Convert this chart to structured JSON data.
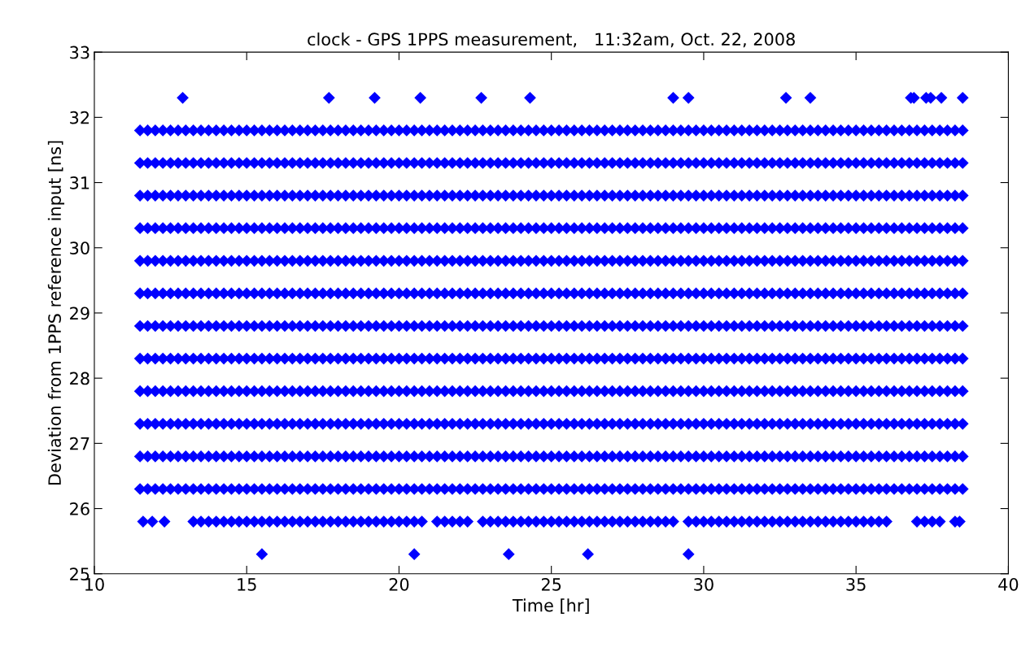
{
  "chart_data": {
    "type": "scatter",
    "title": "clock - GPS 1PPS measurement,   11:32am, Oct. 22, 2008",
    "xlabel": "Time [hr]",
    "ylabel": "Deviation from 1PPS reference input [ns]",
    "x": [
      11.5,
      11.75,
      12,
      12.25,
      12.5,
      12.75,
      13,
      13.25,
      13.5,
      13.75,
      14,
      14.25,
      14.5,
      14.75,
      15,
      15.25,
      15.5,
      15.75,
      16,
      16.25,
      16.5,
      16.75,
      17,
      17.25,
      17.5,
      17.75,
      18,
      18.25,
      18.5,
      18.75,
      19,
      19.25,
      19.5,
      19.75,
      20,
      20.25,
      20.5,
      20.75,
      21,
      21.25,
      21.5,
      21.75,
      22,
      22.25,
      22.5,
      22.75,
      23,
      23.25,
      23.5,
      23.75,
      24,
      24.25,
      24.5,
      24.75,
      25,
      25.25,
      25.5,
      25.75,
      26,
      26.25,
      26.5,
      26.75,
      27,
      27.25,
      27.5,
      27.75,
      28,
      28.25,
      28.5,
      28.75,
      29,
      29.25,
      29.5,
      29.75,
      30,
      30.25,
      30.5,
      30.75,
      31,
      31.25,
      31.5,
      31.75,
      32,
      32.25,
      32.5,
      32.75,
      33,
      33.25,
      33.5,
      33.75,
      34,
      34.25,
      34.5,
      34.75,
      35,
      35.25,
      35.5,
      35.75,
      36,
      36.25,
      36.5,
      36.75,
      37,
      37.25,
      37.5,
      37.75,
      38,
      38.25,
      38.5
    ],
    "series": [
      {
        "color": "#0000ff",
        "x": [
          15.5,
          20.5,
          23.6,
          26.2,
          29.5
        ],
        "values": [
          25.3,
          25.3,
          25.3,
          25.3,
          25.3
        ]
      },
      {
        "color": "#0000ff",
        "x": [
          11.6,
          11.9,
          12.3,
          13.25,
          13.5,
          13.75,
          14,
          14.25,
          14.5,
          14.75,
          15,
          15.25,
          15.5,
          15.75,
          16,
          16.25,
          16.5,
          16.75,
          17,
          17.25,
          17.5,
          17.75,
          18,
          18.25,
          18.5,
          18.75,
          19,
          19.25,
          19.5,
          19.75,
          20,
          20.25,
          20.5,
          20.75,
          21.25,
          21.5,
          21.75,
          22,
          22.25,
          22.75,
          23,
          23.25,
          23.5,
          23.75,
          24,
          24.25,
          24.5,
          24.75,
          25,
          25.25,
          25.5,
          25.75,
          26,
          26.25,
          26.5,
          26.75,
          27,
          27.25,
          27.5,
          27.75,
          28,
          28.25,
          28.5,
          28.75,
          29,
          29.5,
          29.75,
          30,
          30.25,
          30.5,
          30.75,
          31,
          31.25,
          31.5,
          31.75,
          32,
          32.25,
          32.5,
          32.75,
          33,
          33.25,
          33.5,
          33.75,
          34,
          34.25,
          34.5,
          34.75,
          35,
          35.25,
          35.5,
          35.75,
          36,
          37,
          37.25,
          37.5,
          37.75,
          38.25,
          38.4
        ],
        "values": [
          25.8,
          25.8,
          25.8,
          25.8,
          25.8,
          25.8,
          25.8,
          25.8,
          25.8,
          25.8,
          25.8,
          25.8,
          25.8,
          25.8,
          25.8,
          25.8,
          25.8,
          25.8,
          25.8,
          25.8,
          25.8,
          25.8,
          25.8,
          25.8,
          25.8,
          25.8,
          25.8,
          25.8,
          25.8,
          25.8,
          25.8,
          25.8,
          25.8,
          25.8,
          25.8,
          25.8,
          25.8,
          25.8,
          25.8,
          25.8,
          25.8,
          25.8,
          25.8,
          25.8,
          25.8,
          25.8,
          25.8,
          25.8,
          25.8,
          25.8,
          25.8,
          25.8,
          25.8,
          25.8,
          25.8,
          25.8,
          25.8,
          25.8,
          25.8,
          25.8,
          25.8,
          25.8,
          25.8,
          25.8,
          25.8,
          25.8,
          25.8,
          25.8,
          25.8,
          25.8,
          25.8,
          25.8,
          25.8,
          25.8,
          25.8,
          25.8,
          25.8,
          25.8,
          25.8,
          25.8,
          25.8,
          25.8,
          25.8,
          25.8,
          25.8,
          25.8,
          25.8,
          25.8,
          25.8,
          25.8,
          25.8,
          25.8,
          25.8,
          25.8,
          25.8,
          25.8,
          25.8,
          25.8
        ]
      },
      {
        "color": "#0000ff",
        "values": [
          26.3,
          26.3,
          26.3,
          26.3,
          26.3,
          26.3,
          26.3,
          26.3,
          26.3,
          26.3,
          26.3,
          26.3,
          26.3,
          26.3,
          26.3,
          26.3,
          26.3,
          26.3,
          26.3,
          26.3,
          26.3,
          26.3,
          26.3,
          26.3,
          26.3,
          26.3,
          26.3,
          26.3,
          26.3,
          26.3,
          26.3,
          26.3,
          26.3,
          26.3,
          26.3,
          26.3,
          26.3,
          26.3,
          26.3,
          26.3,
          26.3,
          26.3,
          26.3,
          26.3,
          26.3,
          26.3,
          26.3,
          26.3,
          26.3,
          26.3,
          26.3,
          26.3,
          26.3,
          26.3,
          26.3,
          26.3,
          26.3,
          26.3,
          26.3,
          26.3,
          26.3,
          26.3,
          26.3,
          26.3,
          26.3,
          26.3,
          26.3,
          26.3,
          26.3,
          26.3,
          26.3,
          26.3,
          26.3,
          26.3,
          26.3,
          26.3,
          26.3,
          26.3,
          26.3,
          26.3,
          26.3,
          26.3,
          26.3,
          26.3,
          26.3,
          26.3,
          26.3,
          26.3,
          26.3,
          26.3,
          26.3,
          26.3,
          26.3,
          26.3,
          26.3,
          26.3,
          26.3,
          26.3,
          26.3,
          26.3,
          26.3,
          26.3,
          26.3,
          26.3,
          26.3,
          26.3,
          26.3,
          26.3,
          26.3
        ]
      },
      {
        "color": "#0000ff",
        "values": [
          26.8,
          26.8,
          26.8,
          26.8,
          26.8,
          26.8,
          26.8,
          26.8,
          26.8,
          26.8,
          26.8,
          26.8,
          26.8,
          26.8,
          26.8,
          26.8,
          26.8,
          26.8,
          26.8,
          26.8,
          26.8,
          26.8,
          26.8,
          26.8,
          26.8,
          26.8,
          26.8,
          26.8,
          26.8,
          26.8,
          26.8,
          26.8,
          26.8,
          26.8,
          26.8,
          26.8,
          26.8,
          26.8,
          26.8,
          26.8,
          26.8,
          26.8,
          26.8,
          26.8,
          26.8,
          26.8,
          26.8,
          26.8,
          26.8,
          26.8,
          26.8,
          26.8,
          26.8,
          26.8,
          26.8,
          26.8,
          26.8,
          26.8,
          26.8,
          26.8,
          26.8,
          26.8,
          26.8,
          26.8,
          26.8,
          26.8,
          26.8,
          26.8,
          26.8,
          26.8,
          26.8,
          26.8,
          26.8,
          26.8,
          26.8,
          26.8,
          26.8,
          26.8,
          26.8,
          26.8,
          26.8,
          26.8,
          26.8,
          26.8,
          26.8,
          26.8,
          26.8,
          26.8,
          26.8,
          26.8,
          26.8,
          26.8,
          26.8,
          26.8,
          26.8,
          26.8,
          26.8,
          26.8,
          26.8,
          26.8,
          26.8,
          26.8,
          26.8,
          26.8,
          26.8,
          26.8,
          26.8,
          26.8,
          26.8
        ]
      },
      {
        "color": "#0000ff",
        "values": [
          27.3,
          27.3,
          27.3,
          27.3,
          27.3,
          27.3,
          27.3,
          27.3,
          27.3,
          27.3,
          27.3,
          27.3,
          27.3,
          27.3,
          27.3,
          27.3,
          27.3,
          27.3,
          27.3,
          27.3,
          27.3,
          27.3,
          27.3,
          27.3,
          27.3,
          27.3,
          27.3,
          27.3,
          27.3,
          27.3,
          27.3,
          27.3,
          27.3,
          27.3,
          27.3,
          27.3,
          27.3,
          27.3,
          27.3,
          27.3,
          27.3,
          27.3,
          27.3,
          27.3,
          27.3,
          27.3,
          27.3,
          27.3,
          27.3,
          27.3,
          27.3,
          27.3,
          27.3,
          27.3,
          27.3,
          27.3,
          27.3,
          27.3,
          27.3,
          27.3,
          27.3,
          27.3,
          27.3,
          27.3,
          27.3,
          27.3,
          27.3,
          27.3,
          27.3,
          27.3,
          27.3,
          27.3,
          27.3,
          27.3,
          27.3,
          27.3,
          27.3,
          27.3,
          27.3,
          27.3,
          27.3,
          27.3,
          27.3,
          27.3,
          27.3,
          27.3,
          27.3,
          27.3,
          27.3,
          27.3,
          27.3,
          27.3,
          27.3,
          27.3,
          27.3,
          27.3,
          27.3,
          27.3,
          27.3,
          27.3,
          27.3,
          27.3,
          27.3,
          27.3,
          27.3,
          27.3,
          27.3,
          27.3,
          27.3
        ]
      },
      {
        "color": "#0000ff",
        "values": [
          27.8,
          27.8,
          27.8,
          27.8,
          27.8,
          27.8,
          27.8,
          27.8,
          27.8,
          27.8,
          27.8,
          27.8,
          27.8,
          27.8,
          27.8,
          27.8,
          27.8,
          27.8,
          27.8,
          27.8,
          27.8,
          27.8,
          27.8,
          27.8,
          27.8,
          27.8,
          27.8,
          27.8,
          27.8,
          27.8,
          27.8,
          27.8,
          27.8,
          27.8,
          27.8,
          27.8,
          27.8,
          27.8,
          27.8,
          27.8,
          27.8,
          27.8,
          27.8,
          27.8,
          27.8,
          27.8,
          27.8,
          27.8,
          27.8,
          27.8,
          27.8,
          27.8,
          27.8,
          27.8,
          27.8,
          27.8,
          27.8,
          27.8,
          27.8,
          27.8,
          27.8,
          27.8,
          27.8,
          27.8,
          27.8,
          27.8,
          27.8,
          27.8,
          27.8,
          27.8,
          27.8,
          27.8,
          27.8,
          27.8,
          27.8,
          27.8,
          27.8,
          27.8,
          27.8,
          27.8,
          27.8,
          27.8,
          27.8,
          27.8,
          27.8,
          27.8,
          27.8,
          27.8,
          27.8,
          27.8,
          27.8,
          27.8,
          27.8,
          27.8,
          27.8,
          27.8,
          27.8,
          27.8,
          27.8,
          27.8,
          27.8,
          27.8,
          27.8,
          27.8,
          27.8,
          27.8,
          27.8,
          27.8,
          27.8
        ]
      },
      {
        "color": "#0000ff",
        "values": [
          28.3,
          28.3,
          28.3,
          28.3,
          28.3,
          28.3,
          28.3,
          28.3,
          28.3,
          28.3,
          28.3,
          28.3,
          28.3,
          28.3,
          28.3,
          28.3,
          28.3,
          28.3,
          28.3,
          28.3,
          28.3,
          28.3,
          28.3,
          28.3,
          28.3,
          28.3,
          28.3,
          28.3,
          28.3,
          28.3,
          28.3,
          28.3,
          28.3,
          28.3,
          28.3,
          28.3,
          28.3,
          28.3,
          28.3,
          28.3,
          28.3,
          28.3,
          28.3,
          28.3,
          28.3,
          28.3,
          28.3,
          28.3,
          28.3,
          28.3,
          28.3,
          28.3,
          28.3,
          28.3,
          28.3,
          28.3,
          28.3,
          28.3,
          28.3,
          28.3,
          28.3,
          28.3,
          28.3,
          28.3,
          28.3,
          28.3,
          28.3,
          28.3,
          28.3,
          28.3,
          28.3,
          28.3,
          28.3,
          28.3,
          28.3,
          28.3,
          28.3,
          28.3,
          28.3,
          28.3,
          28.3,
          28.3,
          28.3,
          28.3,
          28.3,
          28.3,
          28.3,
          28.3,
          28.3,
          28.3,
          28.3,
          28.3,
          28.3,
          28.3,
          28.3,
          28.3,
          28.3,
          28.3,
          28.3,
          28.3,
          28.3,
          28.3,
          28.3,
          28.3,
          28.3,
          28.3,
          28.3,
          28.3,
          28.3
        ]
      },
      {
        "color": "#0000ff",
        "values": [
          28.8,
          28.8,
          28.8,
          28.8,
          28.8,
          28.8,
          28.8,
          28.8,
          28.8,
          28.8,
          28.8,
          28.8,
          28.8,
          28.8,
          28.8,
          28.8,
          28.8,
          28.8,
          28.8,
          28.8,
          28.8,
          28.8,
          28.8,
          28.8,
          28.8,
          28.8,
          28.8,
          28.8,
          28.8,
          28.8,
          28.8,
          28.8,
          28.8,
          28.8,
          28.8,
          28.8,
          28.8,
          28.8,
          28.8,
          28.8,
          28.8,
          28.8,
          28.8,
          28.8,
          28.8,
          28.8,
          28.8,
          28.8,
          28.8,
          28.8,
          28.8,
          28.8,
          28.8,
          28.8,
          28.8,
          28.8,
          28.8,
          28.8,
          28.8,
          28.8,
          28.8,
          28.8,
          28.8,
          28.8,
          28.8,
          28.8,
          28.8,
          28.8,
          28.8,
          28.8,
          28.8,
          28.8,
          28.8,
          28.8,
          28.8,
          28.8,
          28.8,
          28.8,
          28.8,
          28.8,
          28.8,
          28.8,
          28.8,
          28.8,
          28.8,
          28.8,
          28.8,
          28.8,
          28.8,
          28.8,
          28.8,
          28.8,
          28.8,
          28.8,
          28.8,
          28.8,
          28.8,
          28.8,
          28.8,
          28.8,
          28.8,
          28.8,
          28.8,
          28.8,
          28.8,
          28.8,
          28.8,
          28.8,
          28.8
        ]
      },
      {
        "color": "#0000ff",
        "values": [
          29.3,
          29.3,
          29.3,
          29.3,
          29.3,
          29.3,
          29.3,
          29.3,
          29.3,
          29.3,
          29.3,
          29.3,
          29.3,
          29.3,
          29.3,
          29.3,
          29.3,
          29.3,
          29.3,
          29.3,
          29.3,
          29.3,
          29.3,
          29.3,
          29.3,
          29.3,
          29.3,
          29.3,
          29.3,
          29.3,
          29.3,
          29.3,
          29.3,
          29.3,
          29.3,
          29.3,
          29.3,
          29.3,
          29.3,
          29.3,
          29.3,
          29.3,
          29.3,
          29.3,
          29.3,
          29.3,
          29.3,
          29.3,
          29.3,
          29.3,
          29.3,
          29.3,
          29.3,
          29.3,
          29.3,
          29.3,
          29.3,
          29.3,
          29.3,
          29.3,
          29.3,
          29.3,
          29.3,
          29.3,
          29.3,
          29.3,
          29.3,
          29.3,
          29.3,
          29.3,
          29.3,
          29.3,
          29.3,
          29.3,
          29.3,
          29.3,
          29.3,
          29.3,
          29.3,
          29.3,
          29.3,
          29.3,
          29.3,
          29.3,
          29.3,
          29.3,
          29.3,
          29.3,
          29.3,
          29.3,
          29.3,
          29.3,
          29.3,
          29.3,
          29.3,
          29.3,
          29.3,
          29.3,
          29.3,
          29.3,
          29.3,
          29.3,
          29.3,
          29.3,
          29.3,
          29.3,
          29.3,
          29.3,
          29.3
        ]
      },
      {
        "color": "#0000ff",
        "values": [
          29.8,
          29.8,
          29.8,
          29.8,
          29.8,
          29.8,
          29.8,
          29.8,
          29.8,
          29.8,
          29.8,
          29.8,
          29.8,
          29.8,
          29.8,
          29.8,
          29.8,
          29.8,
          29.8,
          29.8,
          29.8,
          29.8,
          29.8,
          29.8,
          29.8,
          29.8,
          29.8,
          29.8,
          29.8,
          29.8,
          29.8,
          29.8,
          29.8,
          29.8,
          29.8,
          29.8,
          29.8,
          29.8,
          29.8,
          29.8,
          29.8,
          29.8,
          29.8,
          29.8,
          29.8,
          29.8,
          29.8,
          29.8,
          29.8,
          29.8,
          29.8,
          29.8,
          29.8,
          29.8,
          29.8,
          29.8,
          29.8,
          29.8,
          29.8,
          29.8,
          29.8,
          29.8,
          29.8,
          29.8,
          29.8,
          29.8,
          29.8,
          29.8,
          29.8,
          29.8,
          29.8,
          29.8,
          29.8,
          29.8,
          29.8,
          29.8,
          29.8,
          29.8,
          29.8,
          29.8,
          29.8,
          29.8,
          29.8,
          29.8,
          29.8,
          29.8,
          29.8,
          29.8,
          29.8,
          29.8,
          29.8,
          29.8,
          29.8,
          29.8,
          29.8,
          29.8,
          29.8,
          29.8,
          29.8,
          29.8,
          29.8,
          29.8,
          29.8,
          29.8,
          29.8,
          29.8,
          29.8,
          29.8,
          29.8
        ]
      },
      {
        "color": "#0000ff",
        "values": [
          30.3,
          30.3,
          30.3,
          30.3,
          30.3,
          30.3,
          30.3,
          30.3,
          30.3,
          30.3,
          30.3,
          30.3,
          30.3,
          30.3,
          30.3,
          30.3,
          30.3,
          30.3,
          30.3,
          30.3,
          30.3,
          30.3,
          30.3,
          30.3,
          30.3,
          30.3,
          30.3,
          30.3,
          30.3,
          30.3,
          30.3,
          30.3,
          30.3,
          30.3,
          30.3,
          30.3,
          30.3,
          30.3,
          30.3,
          30.3,
          30.3,
          30.3,
          30.3,
          30.3,
          30.3,
          30.3,
          30.3,
          30.3,
          30.3,
          30.3,
          30.3,
          30.3,
          30.3,
          30.3,
          30.3,
          30.3,
          30.3,
          30.3,
          30.3,
          30.3,
          30.3,
          30.3,
          30.3,
          30.3,
          30.3,
          30.3,
          30.3,
          30.3,
          30.3,
          30.3,
          30.3,
          30.3,
          30.3,
          30.3,
          30.3,
          30.3,
          30.3,
          30.3,
          30.3,
          30.3,
          30.3,
          30.3,
          30.3,
          30.3,
          30.3,
          30.3,
          30.3,
          30.3,
          30.3,
          30.3,
          30.3,
          30.3,
          30.3,
          30.3,
          30.3,
          30.3,
          30.3,
          30.3,
          30.3,
          30.3,
          30.3,
          30.3,
          30.3,
          30.3,
          30.3,
          30.3,
          30.3,
          30.3,
          30.3
        ]
      },
      {
        "color": "#0000ff",
        "values": [
          30.8,
          30.8,
          30.8,
          30.8,
          30.8,
          30.8,
          30.8,
          30.8,
          30.8,
          30.8,
          30.8,
          30.8,
          30.8,
          30.8,
          30.8,
          30.8,
          30.8,
          30.8,
          30.8,
          30.8,
          30.8,
          30.8,
          30.8,
          30.8,
          30.8,
          30.8,
          30.8,
          30.8,
          30.8,
          30.8,
          30.8,
          30.8,
          30.8,
          30.8,
          30.8,
          30.8,
          30.8,
          30.8,
          30.8,
          30.8,
          30.8,
          30.8,
          30.8,
          30.8,
          30.8,
          30.8,
          30.8,
          30.8,
          30.8,
          30.8,
          30.8,
          30.8,
          30.8,
          30.8,
          30.8,
          30.8,
          30.8,
          30.8,
          30.8,
          30.8,
          30.8,
          30.8,
          30.8,
          30.8,
          30.8,
          30.8,
          30.8,
          30.8,
          30.8,
          30.8,
          30.8,
          30.8,
          30.8,
          30.8,
          30.8,
          30.8,
          30.8,
          30.8,
          30.8,
          30.8,
          30.8,
          30.8,
          30.8,
          30.8,
          30.8,
          30.8,
          30.8,
          30.8,
          30.8,
          30.8,
          30.8,
          30.8,
          30.8,
          30.8,
          30.8,
          30.8,
          30.8,
          30.8,
          30.8,
          30.8,
          30.8,
          30.8,
          30.8,
          30.8,
          30.8,
          30.8,
          30.8,
          30.8,
          30.8
        ]
      },
      {
        "color": "#0000ff",
        "values": [
          31.3,
          31.3,
          31.3,
          31.3,
          31.3,
          31.3,
          31.3,
          31.3,
          31.3,
          31.3,
          31.3,
          31.3,
          31.3,
          31.3,
          31.3,
          31.3,
          31.3,
          31.3,
          31.3,
          31.3,
          31.3,
          31.3,
          31.3,
          31.3,
          31.3,
          31.3,
          31.3,
          31.3,
          31.3,
          31.3,
          31.3,
          31.3,
          31.3,
          31.3,
          31.3,
          31.3,
          31.3,
          31.3,
          31.3,
          31.3,
          31.3,
          31.3,
          31.3,
          31.3,
          31.3,
          31.3,
          31.3,
          31.3,
          31.3,
          31.3,
          31.3,
          31.3,
          31.3,
          31.3,
          31.3,
          31.3,
          31.3,
          31.3,
          31.3,
          31.3,
          31.3,
          31.3,
          31.3,
          31.3,
          31.3,
          31.3,
          31.3,
          31.3,
          31.3,
          31.3,
          31.3,
          31.3,
          31.3,
          31.3,
          31.3,
          31.3,
          31.3,
          31.3,
          31.3,
          31.3,
          31.3,
          31.3,
          31.3,
          31.3,
          31.3,
          31.3,
          31.3,
          31.3,
          31.3,
          31.3,
          31.3,
          31.3,
          31.3,
          31.3,
          31.3,
          31.3,
          31.3,
          31.3,
          31.3,
          31.3,
          31.3,
          31.3,
          31.3,
          31.3,
          31.3,
          31.3,
          31.3,
          31.3,
          31.3
        ]
      },
      {
        "color": "#0000ff",
        "values": [
          31.8,
          31.8,
          31.8,
          31.8,
          31.8,
          31.8,
          31.8,
          31.8,
          31.8,
          31.8,
          31.8,
          31.8,
          31.8,
          31.8,
          31.8,
          31.8,
          31.8,
          31.8,
          31.8,
          31.8,
          31.8,
          31.8,
          31.8,
          31.8,
          31.8,
          31.8,
          31.8,
          31.8,
          31.8,
          31.8,
          31.8,
          31.8,
          31.8,
          31.8,
          31.8,
          31.8,
          31.8,
          31.8,
          31.8,
          31.8,
          31.8,
          31.8,
          31.8,
          31.8,
          31.8,
          31.8,
          31.8,
          31.8,
          31.8,
          31.8,
          31.8,
          31.8,
          31.8,
          31.8,
          31.8,
          31.8,
          31.8,
          31.8,
          31.8,
          31.8,
          31.8,
          31.8,
          31.8,
          31.8,
          31.8,
          31.8,
          31.8,
          31.8,
          31.8,
          31.8,
          31.8,
          31.8,
          31.8,
          31.8,
          31.8,
          31.8,
          31.8,
          31.8,
          31.8,
          31.8,
          31.8,
          31.8,
          31.8,
          31.8,
          31.8,
          31.8,
          31.8,
          31.8,
          31.8,
          31.8,
          31.8,
          31.8,
          31.8,
          31.8,
          31.8,
          31.8,
          31.8,
          31.8,
          31.8,
          31.8,
          31.8,
          31.8,
          31.8,
          31.8,
          31.8,
          31.8,
          31.8,
          31.8,
          31.8
        ]
      },
      {
        "color": "#0000ff",
        "x": [
          12.9,
          17.7,
          19.2,
          20.7,
          22.7,
          24.3,
          29.0,
          29.5,
          32.7,
          33.5,
          36.8,
          36.9,
          37.3,
          37.45,
          37.8,
          38.5
        ],
        "values": [
          32.3,
          32.3,
          32.3,
          32.3,
          32.3,
          32.3,
          32.3,
          32.3,
          32.3,
          32.3,
          32.3,
          32.3,
          32.3,
          32.3,
          32.3,
          32.3
        ]
      }
    ],
    "xlim": [
      10,
      40
    ],
    "xticks": [
      10,
      15,
      20,
      25,
      30,
      35,
      40
    ],
    "ylim": [
      25,
      33
    ],
    "yticks": [
      25,
      26,
      27,
      28,
      29,
      30,
      31,
      32,
      33
    ],
    "marker": "diamond",
    "grid": false
  }
}
